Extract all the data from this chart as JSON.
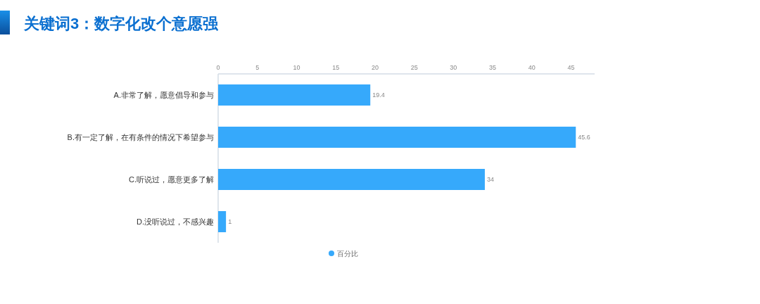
{
  "chart_data": {
    "type": "bar",
    "orientation": "horizontal",
    "title": "关键词3：数字化改个意愿强",
    "categories": [
      "A.非常了解，愿意倡导和参与",
      "B.有一定了解，在有条件的情况下希望参与",
      "C.听说过，愿意更多了解",
      "D.没听说过，不感兴趣"
    ],
    "series": [
      {
        "name": "百分比",
        "color": "#36a9fb",
        "values": [
          19.4,
          45.6,
          34,
          1
        ]
      }
    ],
    "xlim": [
      0,
      48
    ],
    "xticks": [
      0,
      5,
      10,
      15,
      20,
      25,
      30,
      35,
      40,
      45
    ],
    "data_labels": true,
    "legend": "bottom"
  }
}
